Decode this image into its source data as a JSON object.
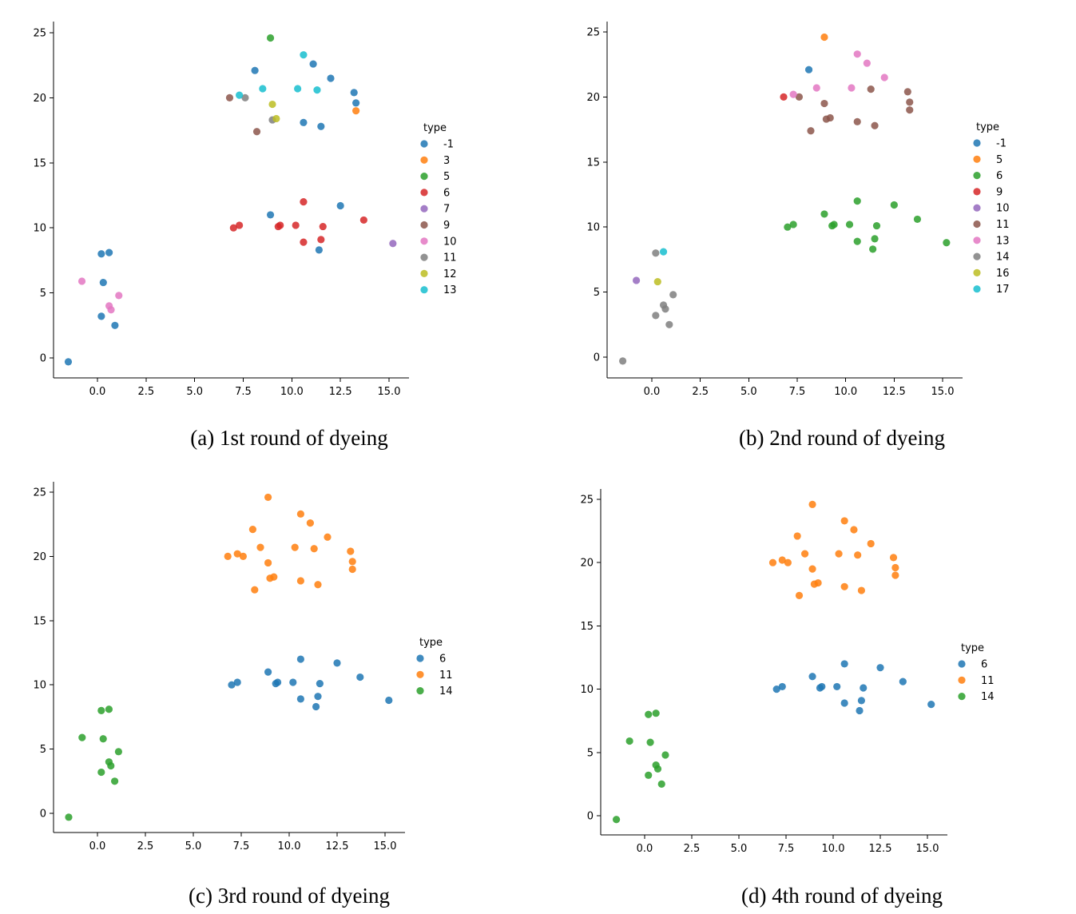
{
  "colors": {
    "tab_blue": "#1f77b4",
    "tab_orange": "#ff7f0e",
    "tab_green": "#2ca02c",
    "tab_red": "#d62728",
    "tab_purple": "#9467bd",
    "tab_brown": "#8c564b",
    "tab_pink": "#e377c2",
    "tab_gray": "#7f7f7f",
    "tab_olive": "#bcbd22",
    "tab_cyan": "#17becf"
  },
  "chart_data": [
    {
      "type": "scatter",
      "caption": "(a) 1st round of dyeing",
      "legend_title": "type",
      "legend_position": "right",
      "grid": false,
      "xticks": [
        "0.0",
        "2.5",
        "5.0",
        "7.5",
        "10.0",
        "12.5",
        "15.0"
      ],
      "yticks": [
        "0",
        "5",
        "10",
        "15",
        "20",
        "25"
      ],
      "xlim": [
        -2.3,
        16.0
      ],
      "ylim": [
        -1.6,
        25.8
      ],
      "series": [
        {
          "name": "-1",
          "color": "#1f77b4",
          "points": [
            [
              -1.5,
              -0.3
            ],
            [
              0.2,
              3.2
            ],
            [
              0.9,
              2.5
            ],
            [
              0.3,
              5.8
            ],
            [
              0.2,
              8.0
            ],
            [
              0.6,
              8.1
            ],
            [
              8.1,
              22.1
            ],
            [
              11.1,
              22.6
            ],
            [
              12.0,
              21.5
            ],
            [
              13.2,
              20.4
            ],
            [
              13.3,
              19.6
            ],
            [
              10.6,
              18.1
            ],
            [
              11.5,
              17.8
            ],
            [
              8.9,
              11.0
            ],
            [
              12.5,
              11.7
            ],
            [
              11.4,
              8.3
            ]
          ]
        },
        {
          "name": "3",
          "color": "#ff7f0e",
          "points": [
            [
              13.3,
              19.0
            ]
          ]
        },
        {
          "name": "5",
          "color": "#2ca02c",
          "points": [
            [
              8.9,
              24.6
            ]
          ]
        },
        {
          "name": "6",
          "color": "#d62728",
          "points": [
            [
              7.0,
              10.0
            ],
            [
              7.3,
              10.2
            ],
            [
              9.3,
              10.1
            ],
            [
              9.4,
              10.2
            ],
            [
              10.2,
              10.2
            ],
            [
              10.6,
              12.0
            ],
            [
              11.6,
              10.1
            ],
            [
              13.7,
              10.6
            ],
            [
              10.6,
              8.9
            ],
            [
              11.5,
              9.1
            ]
          ]
        },
        {
          "name": "7",
          "color": "#9467bd",
          "points": [
            [
              15.2,
              8.8
            ]
          ]
        },
        {
          "name": "9",
          "color": "#8c564b",
          "points": [
            [
              6.8,
              20.0
            ],
            [
              8.2,
              17.4
            ]
          ]
        },
        {
          "name": "10",
          "color": "#e377c2",
          "points": [
            [
              -0.8,
              5.9
            ],
            [
              0.6,
              4.0
            ],
            [
              0.7,
              3.7
            ],
            [
              1.1,
              4.8
            ]
          ]
        },
        {
          "name": "11",
          "color": "#7f7f7f",
          "points": [
            [
              7.6,
              20.0
            ],
            [
              9.0,
              18.3
            ]
          ]
        },
        {
          "name": "12",
          "color": "#bcbd22",
          "points": [
            [
              9.0,
              19.5
            ],
            [
              9.2,
              18.4
            ]
          ]
        },
        {
          "name": "13",
          "color": "#17becf",
          "points": [
            [
              7.3,
              20.2
            ],
            [
              8.5,
              20.7
            ],
            [
              10.3,
              20.7
            ],
            [
              11.3,
              20.6
            ],
            [
              10.6,
              23.3
            ]
          ]
        }
      ]
    },
    {
      "type": "scatter",
      "caption": "(b) 2nd round of dyeing",
      "legend_title": "type",
      "legend_position": "right",
      "grid": false,
      "xticks": [
        "0.0",
        "2.5",
        "5.0",
        "7.5",
        "10.0",
        "12.5",
        "15.0"
      ],
      "yticks": [
        "0",
        "5",
        "10",
        "15",
        "20",
        "25"
      ],
      "xlim": [
        -2.3,
        16.0
      ],
      "ylim": [
        -1.6,
        25.8
      ],
      "series": [
        {
          "name": "-1",
          "color": "#1f77b4",
          "points": [
            [
              8.1,
              22.1
            ]
          ]
        },
        {
          "name": "5",
          "color": "#ff7f0e",
          "points": [
            [
              8.9,
              24.6
            ]
          ]
        },
        {
          "name": "6",
          "color": "#2ca02c",
          "points": [
            [
              7.0,
              10.0
            ],
            [
              7.3,
              10.2
            ],
            [
              8.9,
              11.0
            ],
            [
              9.3,
              10.1
            ],
            [
              9.4,
              10.2
            ],
            [
              10.2,
              10.2
            ],
            [
              10.6,
              12.0
            ],
            [
              11.6,
              10.1
            ],
            [
              12.5,
              11.7
            ],
            [
              13.7,
              10.6
            ],
            [
              15.2,
              8.8
            ],
            [
              10.6,
              8.9
            ],
            [
              11.5,
              9.1
            ],
            [
              11.4,
              8.3
            ]
          ]
        },
        {
          "name": "9",
          "color": "#d62728",
          "points": [
            [
              6.8,
              20.0
            ]
          ]
        },
        {
          "name": "10",
          "color": "#9467bd",
          "points": [
            [
              -0.8,
              5.9
            ]
          ]
        },
        {
          "name": "11",
          "color": "#8c564b",
          "points": [
            [
              7.6,
              20.0
            ],
            [
              8.2,
              17.4
            ],
            [
              9.0,
              18.3
            ],
            [
              9.2,
              18.4
            ],
            [
              8.9,
              19.5
            ],
            [
              10.6,
              18.1
            ],
            [
              11.5,
              17.8
            ],
            [
              11.3,
              20.6
            ],
            [
              13.2,
              20.4
            ],
            [
              13.3,
              19.6
            ],
            [
              13.3,
              19.0
            ]
          ]
        },
        {
          "name": "13",
          "color": "#e377c2",
          "points": [
            [
              7.3,
              20.2
            ],
            [
              8.5,
              20.7
            ],
            [
              10.3,
              20.7
            ],
            [
              10.6,
              23.3
            ],
            [
              11.1,
              22.6
            ],
            [
              12.0,
              21.5
            ]
          ]
        },
        {
          "name": "14",
          "color": "#7f7f7f",
          "points": [
            [
              -1.5,
              -0.3
            ],
            [
              0.2,
              3.2
            ],
            [
              0.9,
              2.5
            ],
            [
              0.6,
              4.0
            ],
            [
              0.7,
              3.7
            ],
            [
              1.1,
              4.8
            ],
            [
              0.2,
              8.0
            ]
          ]
        },
        {
          "name": "16",
          "color": "#bcbd22",
          "points": [
            [
              0.3,
              5.8
            ]
          ]
        },
        {
          "name": "17",
          "color": "#17becf",
          "points": [
            [
              0.6,
              8.1
            ]
          ]
        }
      ]
    },
    {
      "type": "scatter",
      "caption": "(c) 3rd round of dyeing",
      "legend_title": "type",
      "legend_position": "right",
      "grid": false,
      "xticks": [
        "0.0",
        "2.5",
        "5.0",
        "7.5",
        "10.0",
        "12.5",
        "15.0"
      ],
      "yticks": [
        "0",
        "5",
        "10",
        "15",
        "20",
        "25"
      ],
      "xlim": [
        -2.3,
        16.0
      ],
      "ylim": [
        -1.6,
        25.8
      ],
      "series": [
        {
          "name": "6",
          "color": "#1f77b4",
          "points": [
            [
              7.0,
              10.0
            ],
            [
              7.3,
              10.2
            ],
            [
              8.9,
              11.0
            ],
            [
              9.3,
              10.1
            ],
            [
              9.4,
              10.2
            ],
            [
              10.2,
              10.2
            ],
            [
              10.6,
              12.0
            ],
            [
              11.6,
              10.1
            ],
            [
              12.5,
              11.7
            ],
            [
              13.7,
              10.6
            ],
            [
              15.2,
              8.8
            ],
            [
              10.6,
              8.9
            ],
            [
              11.5,
              9.1
            ],
            [
              11.4,
              8.3
            ]
          ]
        },
        {
          "name": "11",
          "color": "#ff7f0e",
          "points": [
            [
              8.9,
              24.6
            ],
            [
              8.1,
              22.1
            ],
            [
              10.6,
              23.3
            ],
            [
              11.1,
              22.6
            ],
            [
              12.0,
              21.5
            ],
            [
              6.8,
              20.0
            ],
            [
              7.3,
              20.2
            ],
            [
              7.6,
              20.0
            ],
            [
              8.5,
              20.7
            ],
            [
              8.9,
              19.5
            ],
            [
              10.3,
              20.7
            ],
            [
              11.3,
              20.6
            ],
            [
              13.2,
              20.4
            ],
            [
              13.3,
              19.6
            ],
            [
              13.3,
              19.0
            ],
            [
              9.0,
              18.3
            ],
            [
              9.2,
              18.4
            ],
            [
              10.6,
              18.1
            ],
            [
              11.5,
              17.8
            ],
            [
              8.2,
              17.4
            ]
          ]
        },
        {
          "name": "14",
          "color": "#2ca02c",
          "points": [
            [
              -1.5,
              -0.3
            ],
            [
              0.2,
              3.2
            ],
            [
              0.9,
              2.5
            ],
            [
              0.6,
              4.0
            ],
            [
              0.7,
              3.7
            ],
            [
              1.1,
              4.8
            ],
            [
              0.3,
              5.8
            ],
            [
              -0.8,
              5.9
            ],
            [
              0.2,
              8.0
            ],
            [
              0.6,
              8.1
            ]
          ]
        }
      ]
    },
    {
      "type": "scatter",
      "caption": "(d) 4th round of dyeing",
      "legend_title": "type",
      "legend_position": "right",
      "grid": false,
      "xticks": [
        "0.0",
        "2.5",
        "5.0",
        "7.5",
        "10.0",
        "12.5",
        "15.0"
      ],
      "yticks": [
        "0",
        "5",
        "10",
        "15",
        "20",
        "25"
      ],
      "xlim": [
        -2.3,
        16.0
      ],
      "ylim": [
        -1.6,
        25.8
      ],
      "series": [
        {
          "name": "6",
          "color": "#1f77b4",
          "points": [
            [
              7.0,
              10.0
            ],
            [
              7.3,
              10.2
            ],
            [
              8.9,
              11.0
            ],
            [
              9.3,
              10.1
            ],
            [
              9.4,
              10.2
            ],
            [
              10.2,
              10.2
            ],
            [
              10.6,
              12.0
            ],
            [
              11.6,
              10.1
            ],
            [
              12.5,
              11.7
            ],
            [
              13.7,
              10.6
            ],
            [
              15.2,
              8.8
            ],
            [
              10.6,
              8.9
            ],
            [
              11.5,
              9.1
            ],
            [
              11.4,
              8.3
            ]
          ]
        },
        {
          "name": "11",
          "color": "#ff7f0e",
          "points": [
            [
              8.9,
              24.6
            ],
            [
              8.1,
              22.1
            ],
            [
              10.6,
              23.3
            ],
            [
              11.1,
              22.6
            ],
            [
              12.0,
              21.5
            ],
            [
              6.8,
              20.0
            ],
            [
              7.3,
              20.2
            ],
            [
              7.6,
              20.0
            ],
            [
              8.5,
              20.7
            ],
            [
              8.9,
              19.5
            ],
            [
              10.3,
              20.7
            ],
            [
              11.3,
              20.6
            ],
            [
              13.2,
              20.4
            ],
            [
              13.3,
              19.6
            ],
            [
              13.3,
              19.0
            ],
            [
              9.0,
              18.3
            ],
            [
              9.2,
              18.4
            ],
            [
              10.6,
              18.1
            ],
            [
              11.5,
              17.8
            ],
            [
              8.2,
              17.4
            ]
          ]
        },
        {
          "name": "14",
          "color": "#2ca02c",
          "points": [
            [
              -1.5,
              -0.3
            ],
            [
              0.2,
              3.2
            ],
            [
              0.9,
              2.5
            ],
            [
              0.6,
              4.0
            ],
            [
              0.7,
              3.7
            ],
            [
              1.1,
              4.8
            ],
            [
              0.3,
              5.8
            ],
            [
              -0.8,
              5.9
            ],
            [
              0.2,
              8.0
            ],
            [
              0.6,
              8.1
            ]
          ]
        }
      ]
    }
  ]
}
